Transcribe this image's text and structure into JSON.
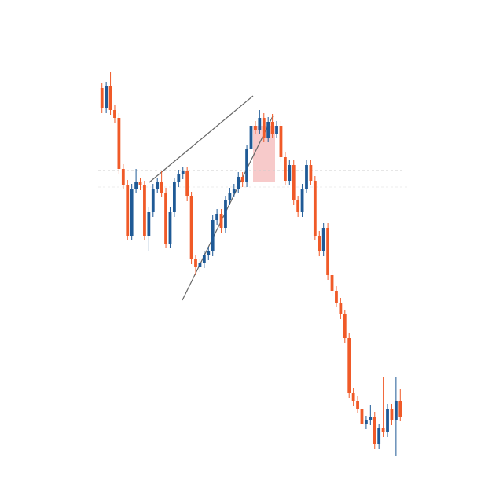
{
  "chart_data": {
    "type": "candlestick",
    "up_color": "#1f5a96",
    "down_color": "#f05a28",
    "ylim": [
      0,
      640
    ],
    "candles": [
      [
        528,
        534,
        496,
        502
      ],
      [
        502,
        536,
        496,
        530
      ],
      [
        530,
        548,
        494,
        500
      ],
      [
        500,
        506,
        484,
        490
      ],
      [
        490,
        496,
        419,
        425
      ],
      [
        425,
        431,
        399,
        405
      ],
      [
        405,
        411,
        334,
        340
      ],
      [
        340,
        406,
        334,
        400
      ],
      [
        400,
        425,
        394,
        408
      ],
      [
        408,
        414,
        398,
        404
      ],
      [
        404,
        410,
        334,
        340
      ],
      [
        340,
        376,
        320,
        370
      ],
      [
        370,
        406,
        364,
        400
      ],
      [
        400,
        414,
        394,
        408
      ],
      [
        408,
        422,
        389,
        395
      ],
      [
        395,
        401,
        324,
        330
      ],
      [
        330,
        376,
        324,
        370
      ],
      [
        370,
        414,
        364,
        408
      ],
      [
        408,
        424,
        402,
        418
      ],
      [
        418,
        428,
        412,
        422
      ],
      [
        422,
        428,
        384,
        390
      ],
      [
        390,
        396,
        304,
        310
      ],
      [
        310,
        316,
        290,
        300
      ],
      [
        300,
        311,
        294,
        305
      ],
      [
        305,
        321,
        299,
        315
      ],
      [
        315,
        326,
        309,
        320
      ],
      [
        320,
        366,
        314,
        360
      ],
      [
        360,
        374,
        354,
        368
      ],
      [
        368,
        374,
        344,
        350
      ],
      [
        350,
        391,
        344,
        385
      ],
      [
        385,
        401,
        379,
        395
      ],
      [
        395,
        406,
        389,
        400
      ],
      [
        400,
        421,
        394,
        415
      ],
      [
        415,
        421,
        402,
        408
      ],
      [
        408,
        456,
        402,
        450
      ],
      [
        450,
        500,
        444,
        480
      ],
      [
        480,
        486,
        469,
        475
      ],
      [
        475,
        500,
        469,
        490
      ],
      [
        490,
        496,
        459,
        465
      ],
      [
        465,
        491,
        459,
        485
      ],
      [
        485,
        495,
        464,
        470
      ],
      [
        470,
        486,
        464,
        480
      ],
      [
        480,
        486,
        434,
        440
      ],
      [
        440,
        446,
        404,
        410
      ],
      [
        410,
        436,
        404,
        430
      ],
      [
        430,
        436,
        379,
        385
      ],
      [
        385,
        391,
        364,
        370
      ],
      [
        370,
        406,
        364,
        400
      ],
      [
        400,
        436,
        394,
        430
      ],
      [
        430,
        436,
        404,
        410
      ],
      [
        410,
        416,
        334,
        340
      ],
      [
        340,
        346,
        314,
        320
      ],
      [
        320,
        356,
        314,
        350
      ],
      [
        350,
        356,
        284,
        290
      ],
      [
        290,
        296,
        264,
        270
      ],
      [
        270,
        276,
        249,
        255
      ],
      [
        255,
        261,
        234,
        240
      ],
      [
        240,
        246,
        204,
        210
      ],
      [
        210,
        216,
        134,
        140
      ],
      [
        140,
        146,
        124,
        130
      ],
      [
        130,
        136,
        114,
        120
      ],
      [
        120,
        126,
        94,
        100
      ],
      [
        100,
        111,
        94,
        105
      ],
      [
        105,
        125,
        99,
        110
      ],
      [
        110,
        116,
        69,
        75
      ],
      [
        75,
        101,
        69,
        95
      ],
      [
        95,
        160,
        84,
        90
      ],
      [
        90,
        126,
        84,
        120
      ],
      [
        120,
        126,
        99,
        105
      ],
      [
        105,
        160,
        60,
        130
      ],
      [
        130,
        145,
        104,
        110
      ]
    ]
  }
}
